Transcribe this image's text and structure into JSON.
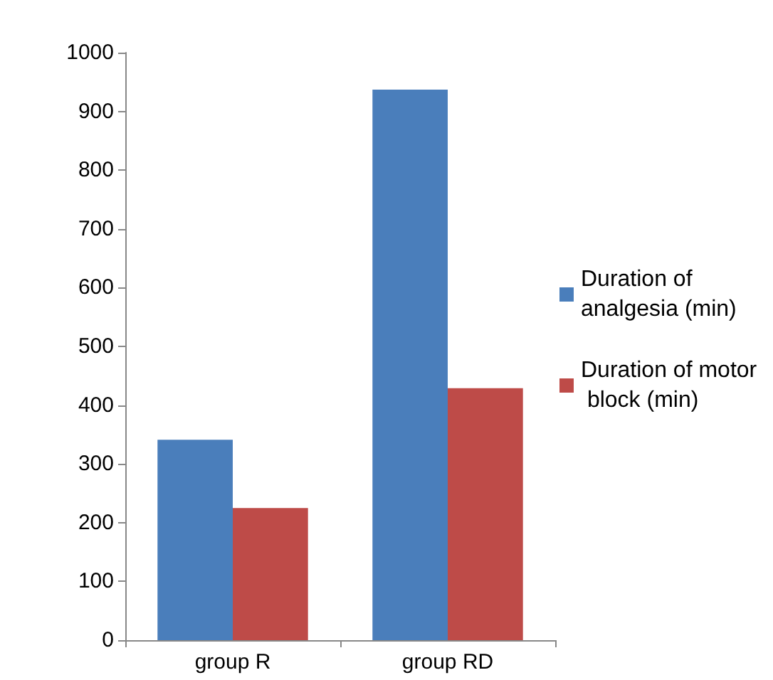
{
  "chart_data": {
    "type": "bar",
    "categories": [
      "group R",
      "group RD"
    ],
    "series": [
      {
        "name": "Duration of analgesia (min)",
        "color": "#4a7ebb",
        "values": [
          341,
          937
        ]
      },
      {
        "name": "Duration of motor block (min)",
        "color": "#be4b48",
        "values": [
          225,
          429
        ]
      }
    ],
    "ylim": [
      0,
      1000
    ],
    "yticks": [
      0,
      100,
      200,
      300,
      400,
      500,
      600,
      700,
      800,
      900,
      1000
    ],
    "grid": false,
    "legend": "right"
  }
}
